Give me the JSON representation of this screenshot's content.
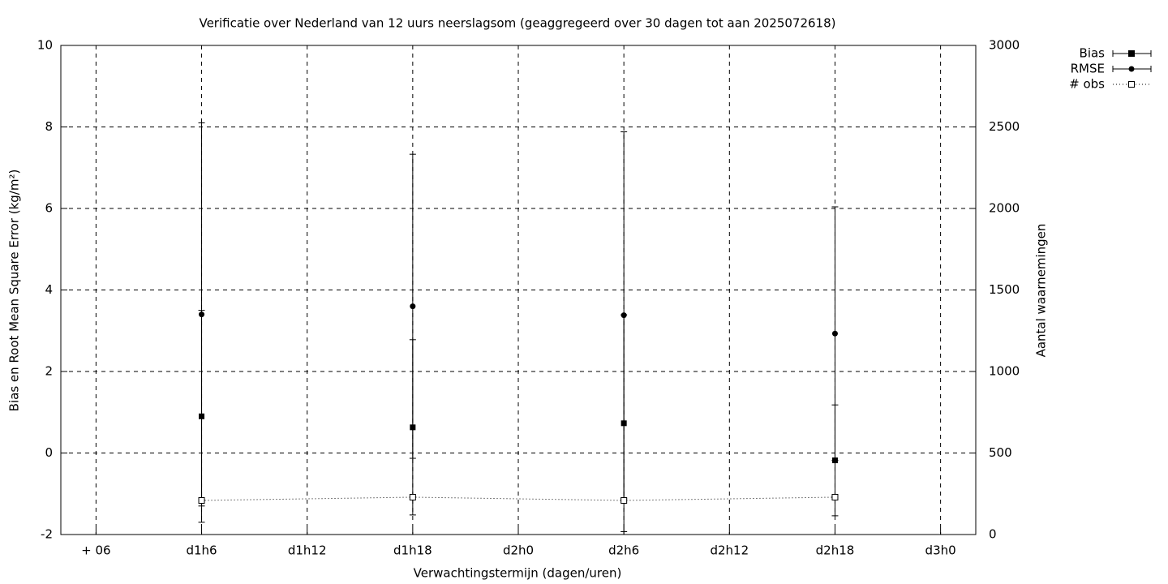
{
  "chart_data": {
    "type": "errorbar",
    "title": "Verificatie over Nederland van 12 uurs neerslagsom (geaggregeerd over 30 dagen tot aan 2025072618)",
    "x_label": "Verwachtingstermijn (dagen/uren)",
    "y_label": "Bias en Root Mean Square Error (kg/m²)",
    "y2_label": "Aantal waarnemingen",
    "x": [
      30,
      42,
      54,
      66
    ],
    "xlim": [
      22,
      74
    ],
    "xticks": [
      {
        "value": 24,
        "label": "+ 06"
      },
      {
        "value": 30,
        "label": "d1h6"
      },
      {
        "value": 36,
        "label": "d1h12"
      },
      {
        "value": 42,
        "label": "d1h18"
      },
      {
        "value": 48,
        "label": "d2h0"
      },
      {
        "value": 54,
        "label": "d2h6"
      },
      {
        "value": 60,
        "label": "d2h12"
      },
      {
        "value": 66,
        "label": "d2h18"
      },
      {
        "value": 72,
        "label": "d3h0"
      }
    ],
    "ylim": [
      -2,
      10
    ],
    "yticks": [
      -2,
      0,
      2,
      4,
      6,
      8,
      10
    ],
    "y2lim": [
      0,
      3000
    ],
    "y2ticks": [
      0,
      500,
      1000,
      1500,
      2000,
      2500,
      3000
    ],
    "grid": true,
    "legend": "top-right-outside",
    "series": [
      {
        "name": "Bias",
        "color": "#000000",
        "marker": "filled-square",
        "values": [
          0.9,
          0.63,
          0.73,
          -0.18
        ],
        "errors": [
          2.6,
          2.15,
          2.66,
          1.36
        ]
      },
      {
        "name": "RMSE",
        "color": "#000000",
        "marker": "filled-circle",
        "values": [
          3.4,
          3.6,
          3.38,
          2.93
        ],
        "errors": [
          4.7,
          3.73,
          4.5,
          3.11
        ]
      },
      {
        "name": "# obs",
        "color": "#000000",
        "marker": "open-square",
        "axis": "y2",
        "values": [
          209,
          229,
          209,
          229
        ]
      }
    ]
  }
}
